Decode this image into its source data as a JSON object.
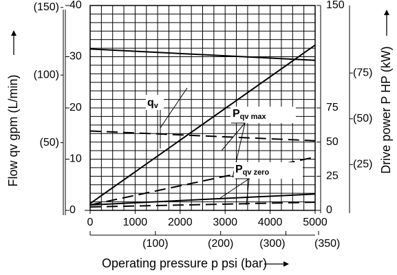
{
  "chart_data": {
    "type": "line",
    "x_axis": {
      "label": "Operating pressure p psi (bar)",
      "unit": "psi",
      "range": [
        0,
        5000
      ],
      "ticks": [
        "0",
        "1000",
        "2000",
        "3000",
        "4000",
        "5000"
      ],
      "secondary_unit": "bar",
      "secondary_ticks": [
        {
          "value": 100,
          "label": "(100)"
        },
        {
          "value": 200,
          "label": "(200)"
        },
        {
          "value": 300,
          "label": "(300)"
        },
        {
          "value": 350,
          "label": "(350)"
        }
      ]
    },
    "left_axis": {
      "label": "Flow qv gpm (L/min)",
      "unit": "gpm",
      "range": [
        0,
        40
      ],
      "ticks": [
        "0",
        "10",
        "20",
        "30",
        "40"
      ],
      "secondary_ticks": [
        {
          "value": 50,
          "label": "(50)"
        },
        {
          "value": 100,
          "label": "(100)"
        },
        {
          "value": 150,
          "label": "(150)"
        }
      ]
    },
    "right_axis": {
      "label": "Drive power P HP (kW)",
      "unit": "HP",
      "range": [
        0,
        150
      ],
      "ticks": [
        "0",
        "25",
        "50",
        "75",
        "150"
      ],
      "secondary_ticks": [
        {
          "value": 25,
          "label": "(25)"
        },
        {
          "value": 50,
          "label": "(50)"
        },
        {
          "value": 75,
          "label": "(75)"
        }
      ]
    },
    "grid": true,
    "series": [
      {
        "name": "qv",
        "axis": "left",
        "style": "solid",
        "x": [
          0,
          5000
        ],
        "y": [
          31.5,
          29.3
        ]
      },
      {
        "name": "qv",
        "axis": "left",
        "style": "dashed",
        "x": [
          0,
          5000
        ],
        "y": [
          15.5,
          13.6
        ]
      },
      {
        "name": "Pqv max",
        "axis": "right",
        "style": "solid",
        "x": [
          0,
          5000
        ],
        "y": [
          5,
          121
        ]
      },
      {
        "name": "Pqv max",
        "axis": "right",
        "style": "dashed",
        "x": [
          0,
          5000
        ],
        "y": [
          4,
          39
        ]
      },
      {
        "name": "Pqv zero",
        "axis": "right",
        "style": "solid",
        "x": [
          0,
          5000
        ],
        "y": [
          4,
          12
        ]
      },
      {
        "name": "Pqv zero",
        "axis": "right",
        "style": "dashed",
        "x": [
          0,
          5000
        ],
        "y": [
          2.5,
          6
        ]
      }
    ],
    "annotations": [
      {
        "main": "q",
        "sub": "v",
        "target": "qv"
      },
      {
        "main": "P",
        "sub": "qv max",
        "target": "Pqv max"
      },
      {
        "main": "P",
        "sub": "qv zero",
        "target": "Pqv zero"
      }
    ]
  }
}
